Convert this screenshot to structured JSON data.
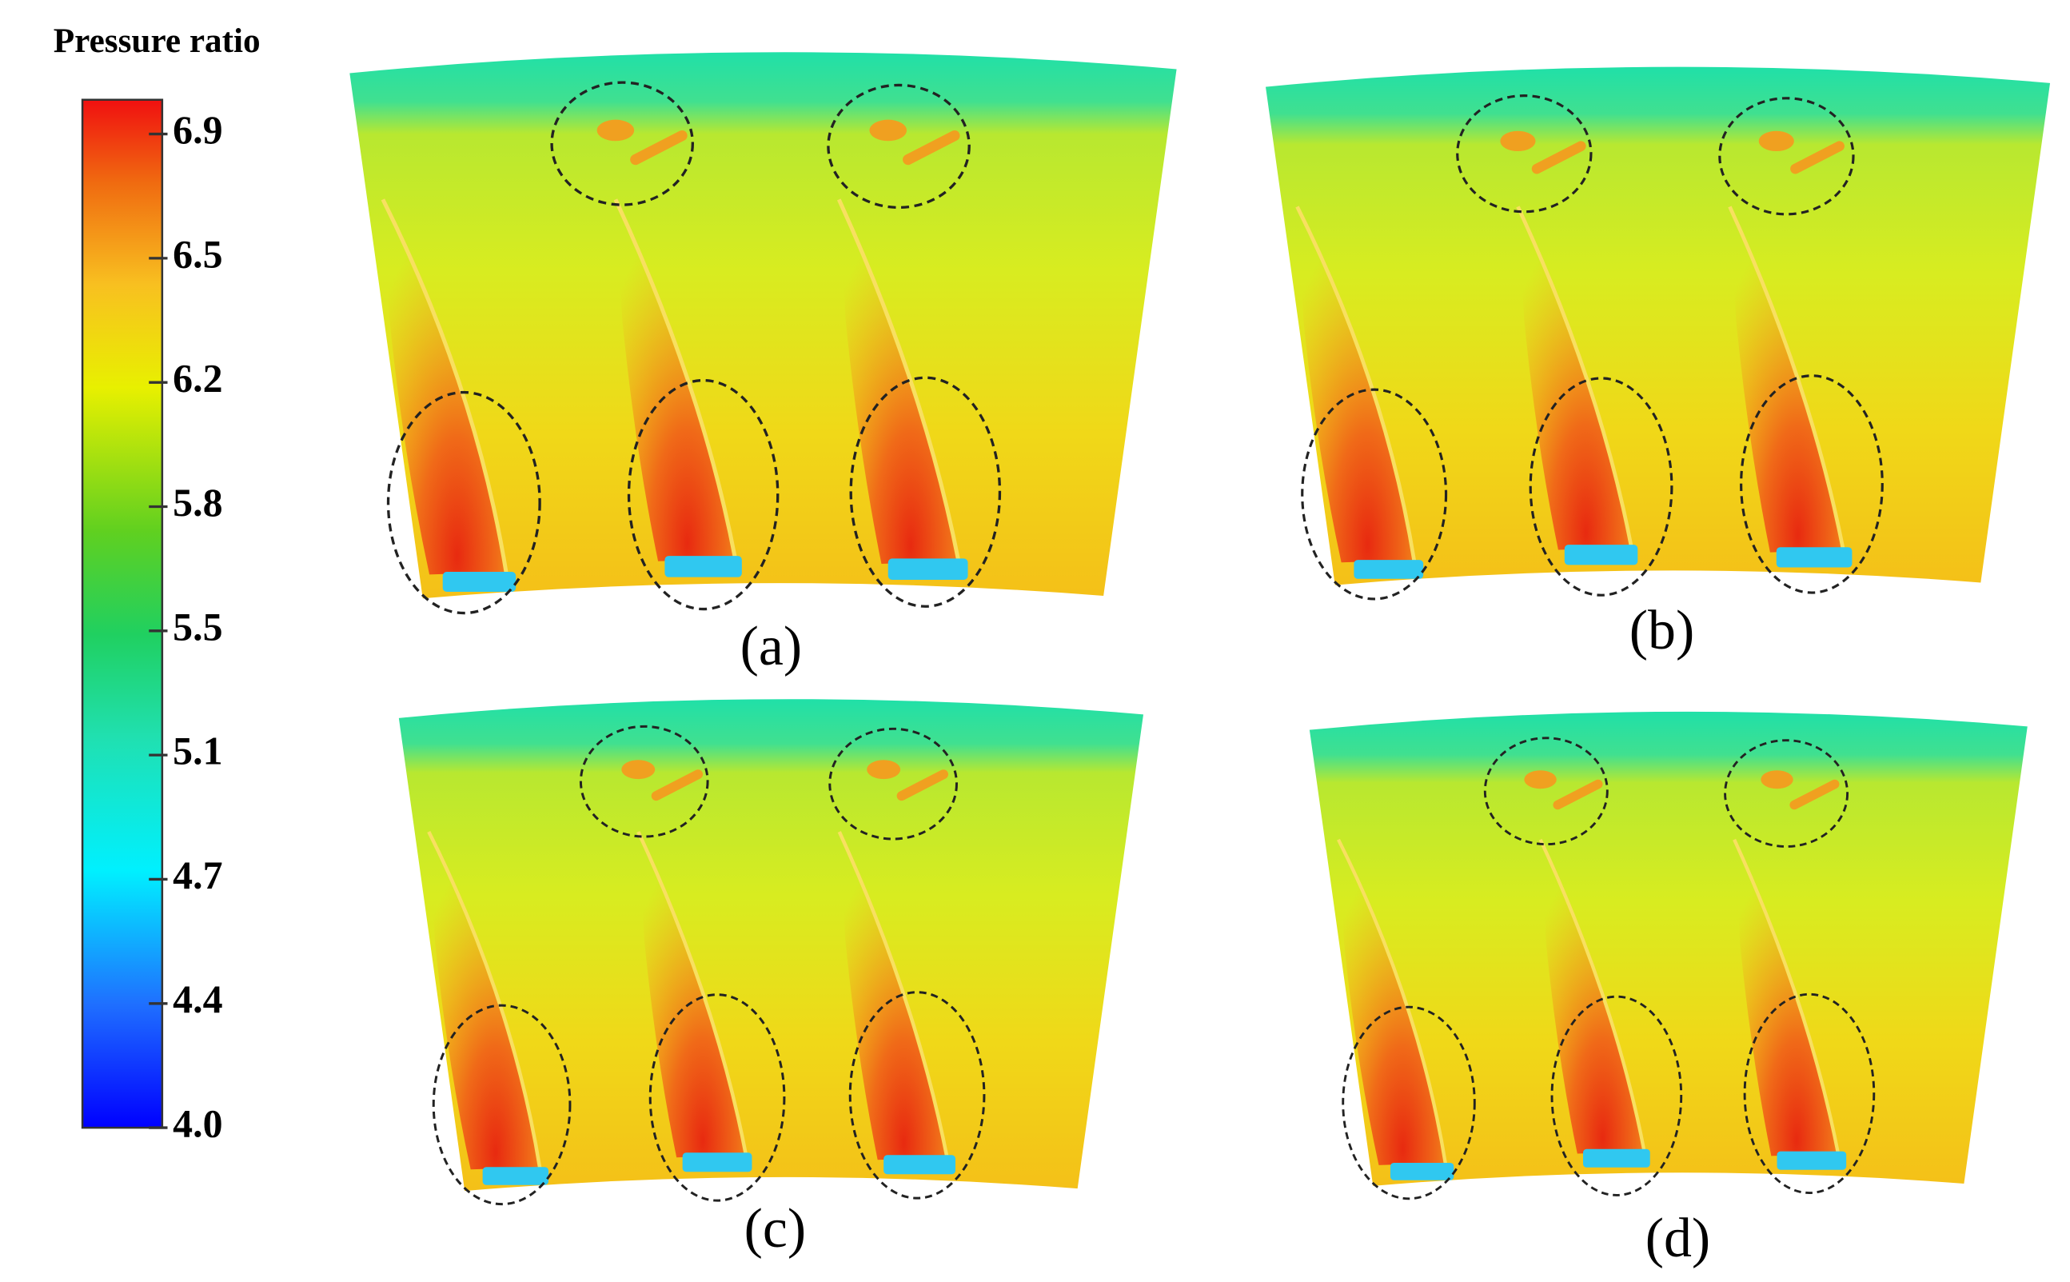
{
  "colorbar": {
    "title": "Pressure ratio",
    "lim": [
      4.0,
      7.0
    ],
    "ticks": [
      {
        "value": 4.0,
        "label": "4.0"
      },
      {
        "value": 4.3625,
        "label": "4.4"
      },
      {
        "value": 4.725,
        "label": "4.7"
      },
      {
        "value": 5.0875,
        "label": "5.1"
      },
      {
        "value": 5.45,
        "label": "5.5"
      },
      {
        "value": 5.8125,
        "label": "5.8"
      },
      {
        "value": 6.175,
        "label": "6.2"
      },
      {
        "value": 6.5375,
        "label": "6.5"
      },
      {
        "value": 6.9,
        "label": "6.9"
      }
    ]
  },
  "panels": [
    {
      "label": "(a)"
    },
    {
      "label": "(b)"
    },
    {
      "label": "(c)"
    },
    {
      "label": "(d)"
    }
  ]
}
